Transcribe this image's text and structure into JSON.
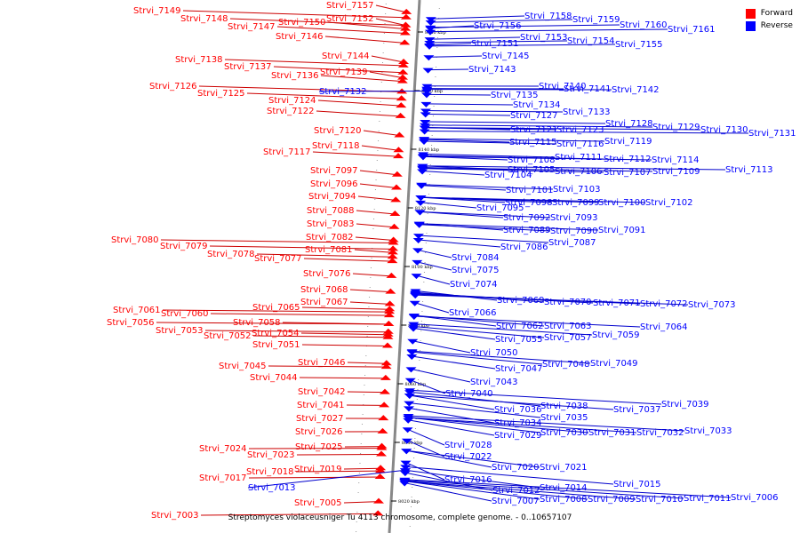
{
  "legend": {
    "forward_label": "Forward",
    "reverse_label": "Reverse",
    "forward_color": "#ff0000",
    "reverse_color": "#0000ff"
  },
  "caption": "Streptomyces violaceusniger Tu 4113 chromosome, complete genome. - 0..10657107",
  "colors": {
    "axis": "#888888",
    "forward": "#ff0000",
    "forward_line": "#cc0000",
    "reverse": "#0000ff",
    "reverse_line": "#0000cc"
  },
  "ticks": [
    {
      "label": "8180 kbp",
      "kbp": 8180
    },
    {
      "label": "8160 kbp",
      "kbp": 8160
    },
    {
      "label": "8140 kbp",
      "kbp": 8140
    },
    {
      "label": "8120 kbp",
      "kbp": 8120
    },
    {
      "label": "8100 kbp",
      "kbp": 8100
    },
    {
      "label": "8080 kbp",
      "kbp": 8080
    },
    {
      "label": "8060 kbp",
      "kbp": 8060
    },
    {
      "label": "8040 kbp",
      "kbp": 8040
    },
    {
      "label": "8020 kbp",
      "kbp": 8020
    }
  ],
  "forward_genes": [
    "Strvi_7157",
    "Strvi_7149",
    "Strvi_7152",
    "Strvi_7148",
    "Strvi_7150",
    "Strvi_7147",
    "Strvi_7146",
    "Strvi_7144",
    "Strvi_7138",
    "Strvi_7137",
    "Strvi_7139",
    "Strvi_7136",
    "Strvi_7126",
    "Strvi_7125",
    "Strvi_7124",
    "Strvi_7122",
    "Strvi_7120",
    "Strvi_7118",
    "Strvi_7117",
    "Strvi_7097",
    "Strvi_7096",
    "Strvi_7094",
    "Strvi_7088",
    "Strvi_7083",
    "Strvi_7080",
    "Strvi_7082",
    "Strvi_7079",
    "Strvi_7081",
    "Strvi_7078",
    "Strvi_7077",
    "Strvi_7076",
    "Strvi_7068",
    "Strvi_7067",
    "Strvi_7065",
    "Strvi_7061",
    "Strvi_7060",
    "Strvi_7058",
    "Strvi_7056",
    "Strvi_7053",
    "Strvi_7054",
    "Strvi_7052",
    "Strvi_7051",
    "Strvi_7046",
    "Strvi_7045",
    "Strvi_7044",
    "Strvi_7042",
    "Strvi_7041",
    "Strvi_7027",
    "Strvi_7026",
    "Strvi_7025",
    "Strvi_7024",
    "Strvi_7023",
    "Strvi_7019",
    "Strvi_7018",
    "Strvi_7017",
    "Strvi_7005",
    "Strvi_7003"
  ],
  "reverse_genes": [
    "Strvi_7158",
    "Strvi_7159",
    "Strvi_7160",
    "Strvi_7161",
    "Strvi_7156",
    "Strvi_7153",
    "Strvi_7154",
    "Strvi_7151",
    "Strvi_7155",
    "Strvi_7145",
    "Strvi_7143",
    "Strvi_7132",
    "Strvi_7140",
    "Strvi_7141",
    "Strvi_7142",
    "Strvi_7135",
    "Strvi_7134",
    "Strvi_7127",
    "Strvi_7133",
    "Strvi_7128",
    "Strvi_7129",
    "Strvi_7130",
    "Strvi_7131",
    "Strvi_7121",
    "Strvi_7123",
    "Strvi_7115",
    "Strvi_7116",
    "Strvi_7119",
    "Strvi_7108",
    "Strvi_7111",
    "Strvi_7112",
    "Strvi_7114",
    "Strvi_7105",
    "Strvi_7106",
    "Strvi_7107",
    "Strvi_7109",
    "Strvi_7113",
    "Strvi_7104",
    "Strvi_7101",
    "Strvi_7103",
    "Strvi_7098",
    "Strvi_7099",
    "Strvi_7100",
    "Strvi_7102",
    "Strvi_7095",
    "Strvi_7092",
    "Strvi_7093",
    "Strvi_7089",
    "Strvi_7090",
    "Strvi_7091",
    "Strvi_7086",
    "Strvi_7087",
    "Strvi_7084",
    "Strvi_7075",
    "Strvi_7074",
    "Strvi_7069",
    "Strvi_7070",
    "Strvi_7071",
    "Strvi_7072",
    "Strvi_7073",
    "Strvi_7066",
    "Strvi_7062",
    "Strvi_7063",
    "Strvi_7064",
    "Strvi_7055",
    "Strvi_7057",
    "Strvi_7059",
    "Strvi_7050",
    "Strvi_7047",
    "Strvi_7048",
    "Strvi_7049",
    "Strvi_7043",
    "Strvi_7040",
    "Strvi_7038",
    "Strvi_7039",
    "Strvi_7036",
    "Strvi_7037",
    "Strvi_7034",
    "Strvi_7035",
    "Strvi_7029",
    "Strvi_7030",
    "Strvi_7031",
    "Strvi_7032",
    "Strvi_7033",
    "Strvi_7028",
    "Strvi_7022",
    "Strvi_7020",
    "Strvi_7021",
    "Strvi_7016",
    "Strvi_7015",
    "Strvi_7012",
    "Strvi_7014",
    "Strvi_7013",
    "Strvi_7007",
    "Strvi_7008",
    "Strvi_7009",
    "Strvi_7010",
    "Strvi_7011",
    "Strvi_7006"
  ]
}
